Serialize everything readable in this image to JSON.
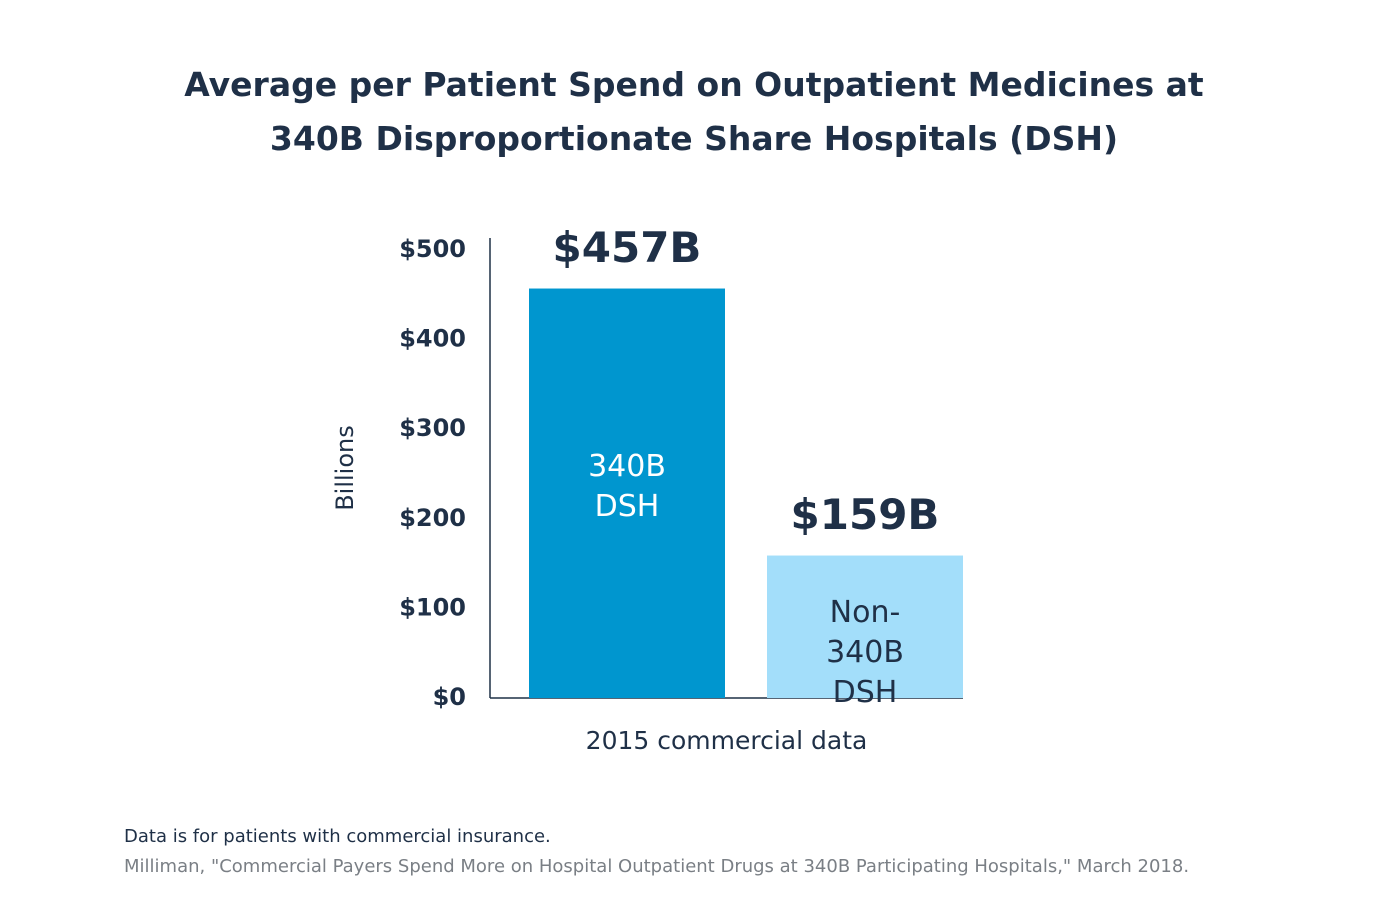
{
  "chart_data": {
    "type": "bar",
    "title": "Average per Patient Spend on Outpatient Medicines at 340B Disproportionate Share Hospitals (DSH)",
    "y_label": "Billions",
    "x_label": "2015 commercial data",
    "categories": [
      "340B DSH",
      "Non-340B DSH"
    ],
    "values": [
      457,
      159
    ],
    "value_labels": [
      "$457B",
      "$159B"
    ],
    "colors": [
      "#0096cf",
      "#a3defa"
    ],
    "label_colors": [
      "#ffffff",
      "#1f3047"
    ],
    "ylim": [
      0,
      500
    ],
    "yticks": [
      {
        "value": 0,
        "label": "$0"
      },
      {
        "value": 100,
        "label": "$100"
      },
      {
        "value": 200,
        "label": "$200"
      },
      {
        "value": 300,
        "label": "$300"
      },
      {
        "value": 400,
        "label": "$400"
      },
      {
        "value": 500,
        "label": "$500"
      }
    ],
    "grid": false,
    "note": "Data is for patients with commercial insurance.",
    "source": "Milliman, \"Commercial Payers Spend More on Hospital Outpatient Drugs at 340B Participating Hospitals,\" March 2018."
  }
}
